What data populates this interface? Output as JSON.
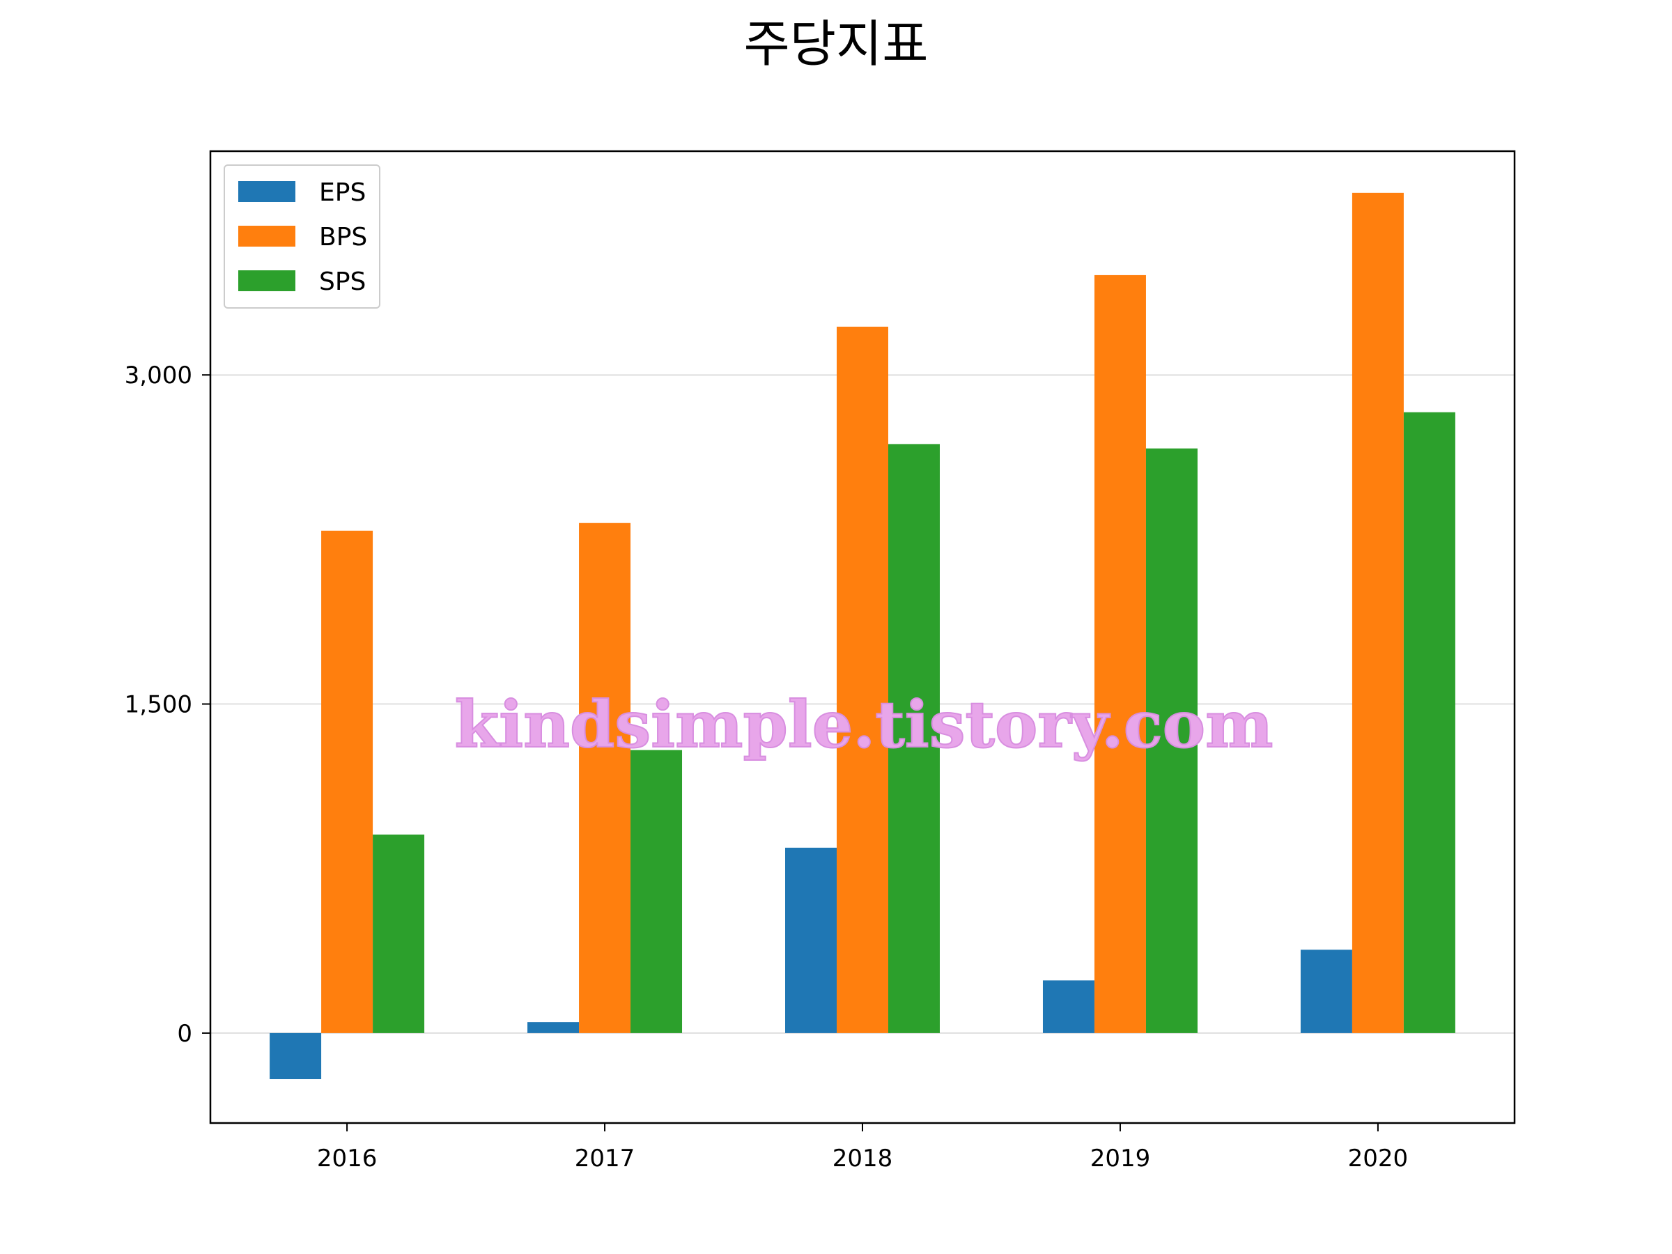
{
  "chart_data": {
    "type": "bar",
    "title": "주당지표",
    "categories": [
      "2016",
      "2017",
      "2018",
      "2019",
      "2020"
    ],
    "series": [
      {
        "name": "EPS",
        "color": "#1f77b4",
        "values": [
          -210,
          50,
          845,
          240,
          380
        ]
      },
      {
        "name": "BPS",
        "color": "#ff7f0e",
        "values": [
          2290,
          2325,
          3220,
          3455,
          3830
        ]
      },
      {
        "name": "SPS",
        "color": "#2ca02c",
        "values": [
          905,
          1290,
          2685,
          2665,
          2830
        ]
      }
    ],
    "xlabel": "",
    "ylabel": "",
    "ylim": [
      -410,
      4020
    ],
    "yticks": [
      0,
      1500,
      3000
    ],
    "ytick_labels": [
      "0",
      "1,500",
      "3,000"
    ],
    "grid": "y",
    "legend_position": "top-left"
  },
  "watermark": "kindsimple.tistory.com"
}
